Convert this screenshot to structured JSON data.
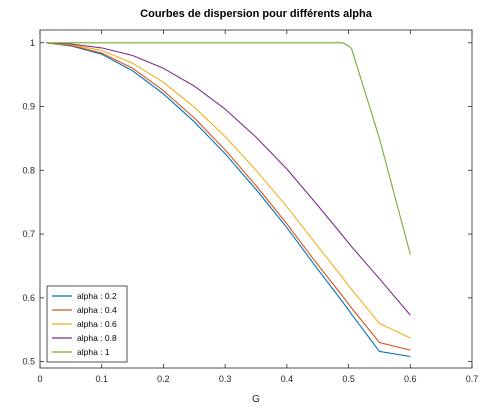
{
  "chart_data": {
    "type": "line",
    "title": "Courbes de dispersion pour différents alpha",
    "xlabel": "G",
    "ylabel": "",
    "xlim": [
      0,
      0.7
    ],
    "ylim": [
      0.49,
      1.02
    ],
    "xticks": [
      0,
      0.1,
      0.2,
      0.3,
      0.4,
      0.5,
      0.6,
      0.7
    ],
    "xtick_labels": [
      "0",
      "0.1",
      "0.2",
      "0.3",
      "0.4",
      "0.5",
      "0.6",
      "0.7"
    ],
    "yticks": [
      0.5,
      0.6,
      0.7,
      0.8,
      0.9,
      1
    ],
    "ytick_labels": [
      "0.5",
      "0.6",
      "0.7",
      "0.8",
      "0.9",
      "1"
    ],
    "grid": false,
    "legend_position": "bottom-left",
    "x": [
      0.01,
      0.05,
      0.1,
      0.15,
      0.2,
      0.25,
      0.3,
      0.35,
      0.4,
      0.45,
      0.49,
      0.5,
      0.505,
      0.55,
      0.6
    ],
    "series": [
      {
        "name": "alpha : 0.2",
        "color": "#0072bd",
        "values": [
          1.0,
          0.995,
          0.982,
          0.956,
          0.92,
          0.876,
          0.826,
          0.77,
          0.71,
          0.645,
          0.594,
          0.581,
          0.574,
          0.516,
          0.508
        ]
      },
      {
        "name": "alpha : 0.4",
        "color": "#d95319",
        "values": [
          1.0,
          0.996,
          0.984,
          0.96,
          0.925,
          0.882,
          0.832,
          0.776,
          0.716,
          0.652,
          0.603,
          0.59,
          0.584,
          0.53,
          0.518
        ]
      },
      {
        "name": "alpha : 0.6",
        "color": "#edb120",
        "values": [
          1.0,
          0.997,
          0.988,
          0.968,
          0.938,
          0.899,
          0.853,
          0.8,
          0.743,
          0.681,
          0.632,
          0.619,
          0.613,
          0.56,
          0.537
        ]
      },
      {
        "name": "alpha : 0.8",
        "color": "#7e2f8e",
        "values": [
          1.0,
          0.998,
          0.992,
          0.98,
          0.96,
          0.932,
          0.896,
          0.852,
          0.802,
          0.745,
          0.698,
          0.686,
          0.68,
          0.63,
          0.573
        ]
      },
      {
        "name": "alpha : 1",
        "color": "#77ac30",
        "values": [
          1.0,
          1.0,
          1.0,
          1.0,
          1.0,
          1.0,
          1.0,
          1.0,
          1.0,
          1.0,
          1.0,
          0.995,
          0.99,
          0.85,
          0.668
        ]
      }
    ]
  }
}
